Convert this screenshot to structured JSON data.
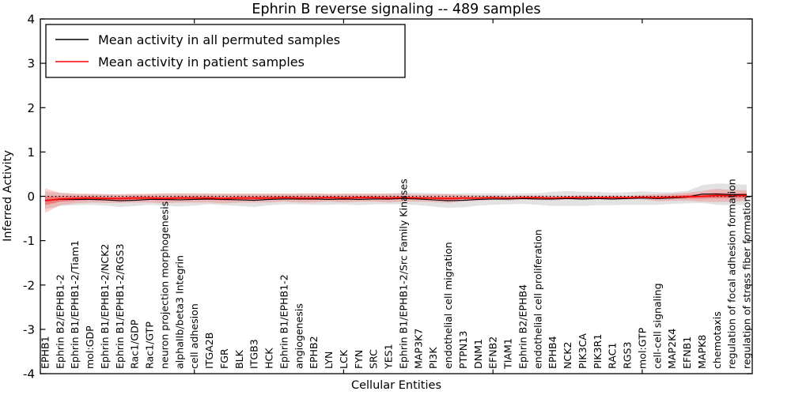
{
  "title": "Ephrin B reverse signaling -- 489 samples",
  "legend": {
    "items": [
      {
        "label": "Mean activity in all permuted samples",
        "color": "#000000"
      },
      {
        "label": "Mean activity in patient samples",
        "color": "#ff0000"
      }
    ],
    "position": "upper left"
  },
  "colors": {
    "permuted_line": "#000000",
    "patient_line": "#ff0000",
    "permuted_band": "rgba(125,125,125,0.22)",
    "patient_band_outer": "rgba(255,0,0,0.18)",
    "patient_band_inner": "rgba(255,0,0,0.35)",
    "zero_line": "#000000"
  },
  "chart_data": {
    "type": "line",
    "title": "Ephrin B reverse signaling -- 489 samples",
    "xlabel": "Cellular Entities",
    "ylabel": "Inferred Activity",
    "ylim": [
      -4,
      4
    ],
    "yticks": [
      4,
      3,
      2,
      1,
      0,
      -1,
      -2,
      -3,
      -4
    ],
    "grid": false,
    "legend_position": "upper left",
    "zero_reference_line": 0,
    "x_major_tick_positions": [
      10,
      20,
      30,
      40
    ],
    "categories": [
      "EPHB1",
      "Ephrin B2/EPHB1-2",
      "Ephrin B1/EPHB1-2/Tiam1",
      "mol:GDP",
      "Ephrin B1/EPHB1-2/NCK2",
      "Ephrin B1/EPHB1-2/RGS3",
      "Rac1/GDP",
      "Rac1/GTP",
      "neuron projection morphogenesis",
      "alphaIIb/beta3 Integrin",
      "cell adhesion",
      "ITGA2B",
      "FGR",
      "BLK",
      "ITGB3",
      "HCK",
      "Ephrin B1/EPHB1-2",
      "angiogenesis",
      "EPHB2",
      "LYN",
      "LCK",
      "FYN",
      "SRC",
      "YES1",
      "Ephrin B1/EPHB1-2/Src Family Kinases",
      "MAP3K7",
      "PI3K",
      "endothelial cell migration",
      "PTPN13",
      "DNM1",
      "EFNB2",
      "TIAM1",
      "Ephrin B2/EPHB4",
      "endothelial cell proliferation",
      "EPHB4",
      "NCK2",
      "PIK3CA",
      "PIK3R1",
      "RAC1",
      "RGS3",
      "mol:GTP",
      "cell-cell signaling",
      "MAP2K4",
      "EFNB1",
      "MAPK8",
      "chemotaxis",
      "regulation of focal adhesion formation",
      "regulation of stress fiber formation"
    ],
    "series": [
      {
        "name": "Mean activity in all permuted samples",
        "color": "#000000",
        "line_width": 1.1,
        "values": [
          -0.09,
          -0.07,
          -0.07,
          -0.07,
          -0.08,
          -0.1,
          -0.09,
          -0.07,
          -0.07,
          -0.08,
          -0.07,
          -0.06,
          -0.07,
          -0.08,
          -0.09,
          -0.07,
          -0.06,
          -0.06,
          -0.06,
          -0.07,
          -0.06,
          -0.07,
          -0.06,
          -0.06,
          -0.05,
          -0.06,
          -0.08,
          -0.1,
          -0.09,
          -0.07,
          -0.06,
          -0.06,
          -0.05,
          -0.06,
          -0.06,
          -0.05,
          -0.06,
          -0.05,
          -0.06,
          -0.05,
          -0.04,
          -0.05,
          -0.04,
          -0.02,
          0.05,
          0.05,
          0.04,
          0.04
        ],
        "band_halfwidth": [
          0.2,
          0.15,
          0.13,
          0.12,
          0.13,
          0.14,
          0.13,
          0.12,
          0.14,
          0.15,
          0.14,
          0.12,
          0.13,
          0.14,
          0.15,
          0.13,
          0.12,
          0.12,
          0.13,
          0.12,
          0.12,
          0.13,
          0.12,
          0.12,
          0.13,
          0.14,
          0.15,
          0.16,
          0.16,
          0.14,
          0.13,
          0.12,
          0.12,
          0.13,
          0.16,
          0.17,
          0.16,
          0.15,
          0.14,
          0.14,
          0.15,
          0.14,
          0.13,
          0.14,
          0.2,
          0.24,
          0.24,
          0.22
        ]
      },
      {
        "name": "Mean activity in patient samples",
        "color": "#ff0000",
        "line_width": 1.6,
        "values": [
          -0.1,
          -0.06,
          -0.05,
          -0.04,
          -0.05,
          -0.05,
          -0.04,
          -0.04,
          -0.05,
          -0.04,
          -0.04,
          -0.04,
          -0.05,
          -0.04,
          -0.04,
          -0.04,
          -0.03,
          -0.04,
          -0.04,
          -0.03,
          -0.04,
          -0.03,
          -0.03,
          -0.04,
          -0.03,
          -0.04,
          -0.04,
          -0.05,
          -0.04,
          -0.04,
          -0.03,
          -0.04,
          -0.03,
          -0.03,
          -0.04,
          -0.03,
          -0.03,
          -0.03,
          -0.03,
          -0.03,
          -0.02,
          -0.03,
          -0.02,
          -0.01,
          0.0,
          0.02,
          0.01,
          0.02
        ],
        "band_halfwidth": [
          0.28,
          0.14,
          0.11,
          0.1,
          0.1,
          0.1,
          0.1,
          0.1,
          0.11,
          0.1,
          0.1,
          0.1,
          0.11,
          0.1,
          0.1,
          0.1,
          0.09,
          0.1,
          0.1,
          0.09,
          0.1,
          0.09,
          0.09,
          0.1,
          0.09,
          0.08,
          0.09,
          0.1,
          0.07,
          0.06,
          0.05,
          0.05,
          0.05,
          0.05,
          0.05,
          0.04,
          0.05,
          0.04,
          0.05,
          0.04,
          0.05,
          0.08,
          0.08,
          0.09,
          0.12,
          0.15,
          0.13,
          0.12
        ],
        "inner_band_halfwidth": [
          0.1,
          0.06,
          0.05,
          0.04,
          0.04,
          0.04,
          0.04,
          0.04,
          0.04,
          0.04,
          0.04,
          0.04,
          0.04,
          0.04,
          0.04,
          0.04,
          0.03,
          0.04,
          0.04,
          0.03,
          0.04,
          0.03,
          0.03,
          0.04,
          0.03,
          0.03,
          0.03,
          0.04,
          0.03,
          0.02,
          0.02,
          0.02,
          0.02,
          0.02,
          0.02,
          0.02,
          0.02,
          0.02,
          0.02,
          0.02,
          0.02,
          0.03,
          0.03,
          0.04,
          0.05,
          0.06,
          0.05,
          0.05
        ]
      }
    ]
  }
}
